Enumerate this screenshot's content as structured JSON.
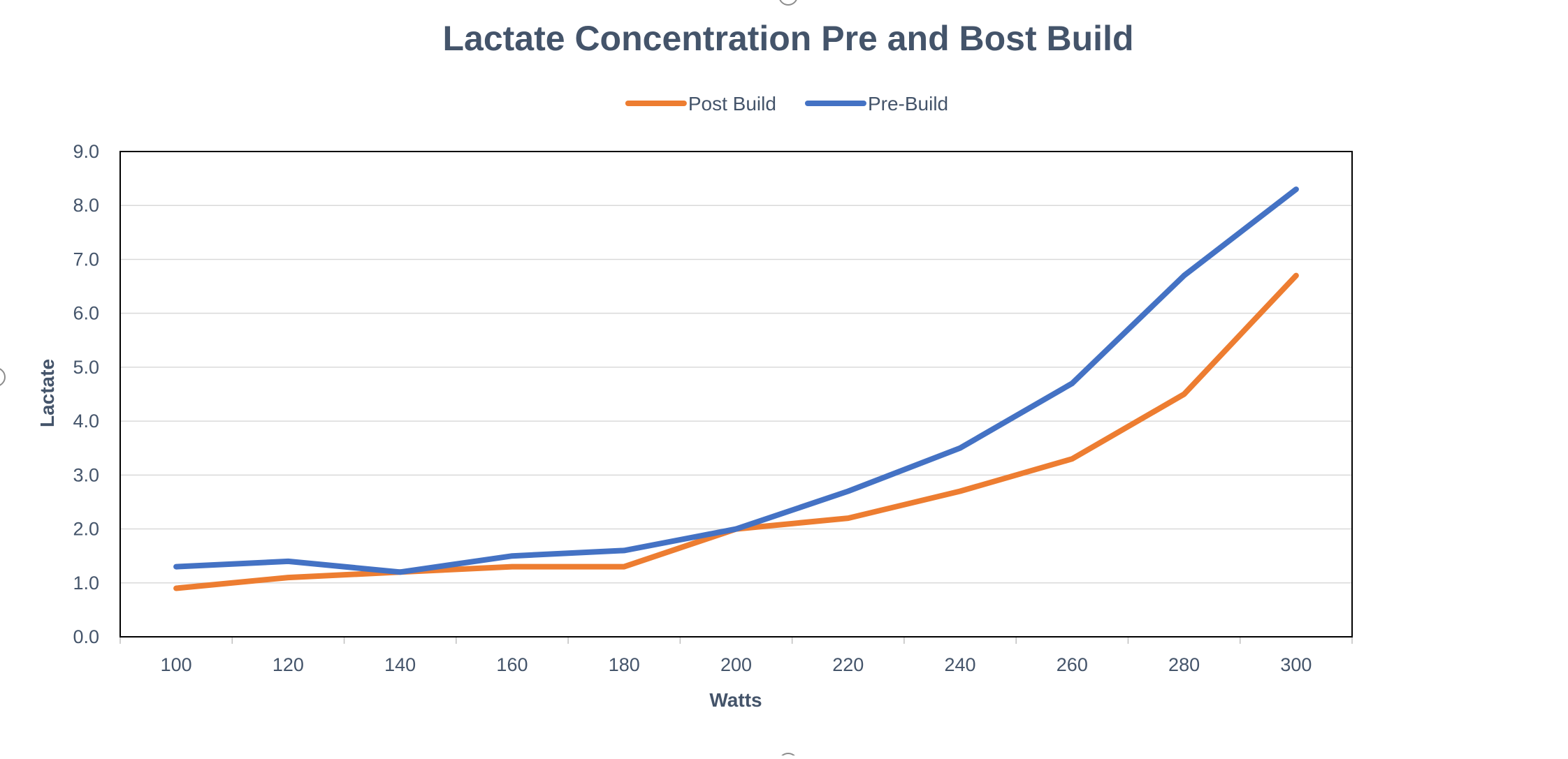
{
  "chart_data": {
    "type": "line",
    "title": "Lactate Concentration Pre and Bost Build",
    "xlabel": "Watts",
    "ylabel": "Lactate",
    "categories": [
      "100",
      "120",
      "140",
      "160",
      "180",
      "200",
      "220",
      "240",
      "260",
      "280",
      "300"
    ],
    "ylim": [
      0,
      9
    ],
    "yticks": [
      "0.0",
      "1.0",
      "2.0",
      "3.0",
      "4.0",
      "5.0",
      "6.0",
      "7.0",
      "8.0",
      "9.0"
    ],
    "grid": true,
    "legend_position": "top",
    "series": [
      {
        "name": "Post Build",
        "color": "#ED7D31",
        "values": [
          0.9,
          1.1,
          1.2,
          1.3,
          1.3,
          2.0,
          2.2,
          2.7,
          3.3,
          4.5,
          6.7
        ]
      },
      {
        "name": "Pre-Build",
        "color": "#4472C4",
        "values": [
          1.3,
          1.4,
          1.2,
          1.5,
          1.6,
          2.0,
          2.7,
          3.5,
          4.7,
          6.7,
          8.3
        ]
      }
    ]
  }
}
